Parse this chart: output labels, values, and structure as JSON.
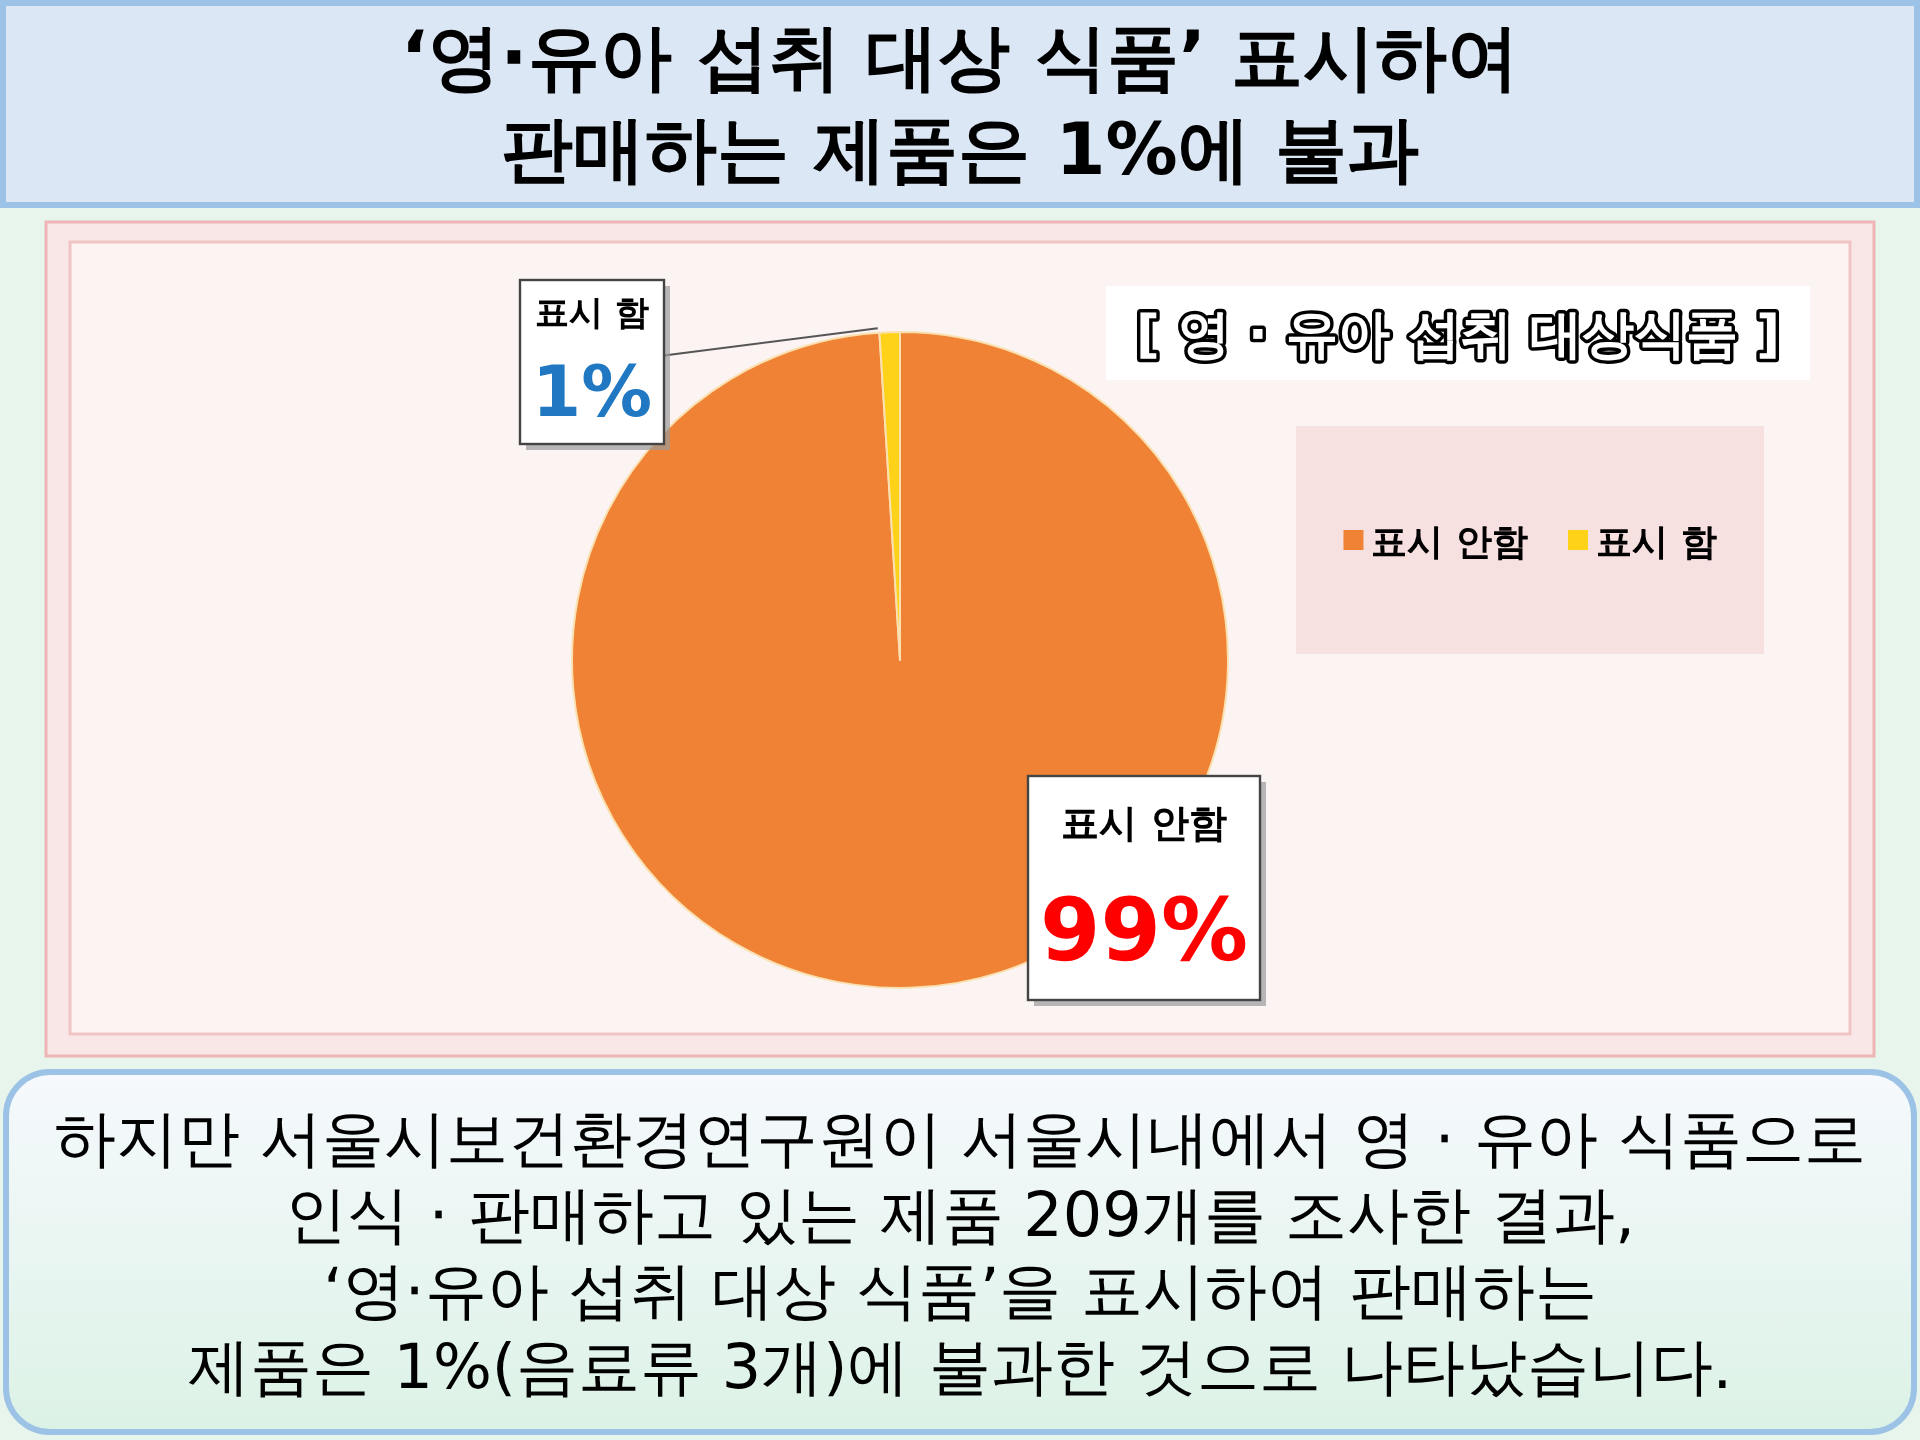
{
  "chart_data": {
    "type": "pie",
    "title": "‘영·유아 섭취 대상 식품’ 표시하여 판매하는 제품은 1%에 불과",
    "subtitle": "[ 영 · 유아 섭취 대상식품 ]",
    "categories": [
      "표시 안함",
      "표시 함"
    ],
    "values": [
      99,
      1
    ],
    "colors": [
      "#f08235",
      "#ffd21a"
    ],
    "value_labels": [
      "99%",
      "1%"
    ],
    "legend": "right",
    "annotations": [
      "하지만 서울시보건환경연구원이 서울시내에서 영 · 유아 식품으로\n인식 · 판매하고 있는 제품 209개를 조사한 결과,\n‘영·유아 섭취 대상 식품’을 표시하여 판매하는\n제품은 1%(음료류 3개)에 불과한 것으로 나타났습니다."
    ]
  }
}
